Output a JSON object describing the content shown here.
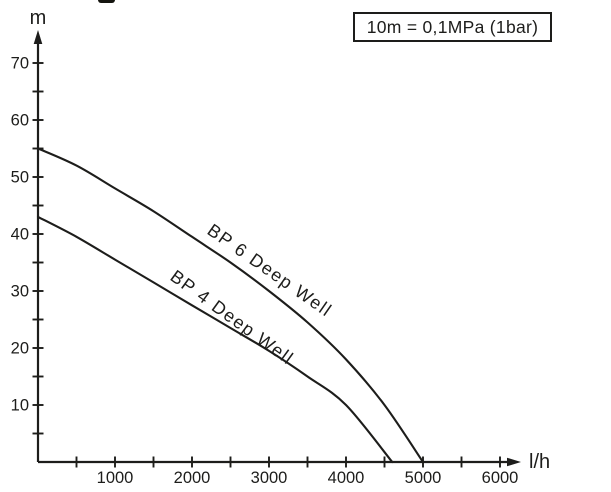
{
  "chart_data": {
    "type": "line",
    "title": "",
    "xlabel": "l/h",
    "ylabel": "m",
    "annotation": "10m = 0,1MPa (1bar)",
    "grid": false,
    "legend_position": "labels-along-curves",
    "x_axis": {
      "unit_label": "l/h",
      "range": [
        0,
        6250
      ],
      "major_ticks": [
        1000,
        2000,
        3000,
        4000,
        5000,
        6000
      ],
      "minor_ticks": [
        500,
        1500,
        2500,
        3500,
        4500,
        5500
      ]
    },
    "y_axis": {
      "unit_label": "m",
      "range": [
        0,
        73
      ],
      "major_ticks": [
        10,
        20,
        30,
        40,
        50,
        60,
        70
      ],
      "minor_ticks": [
        5,
        15,
        25,
        35,
        45,
        55,
        65
      ]
    },
    "series": [
      {
        "name": "BP 6 Deep Well",
        "points": [
          [
            0,
            55
          ],
          [
            500,
            52
          ],
          [
            1000,
            48
          ],
          [
            1500,
            44
          ],
          [
            2000,
            39.5
          ],
          [
            2500,
            35
          ],
          [
            3000,
            30
          ],
          [
            3500,
            24.5
          ],
          [
            4000,
            18
          ],
          [
            4500,
            10
          ],
          [
            5000,
            0
          ]
        ]
      },
      {
        "name": "BP 4 Deep Well",
        "points": [
          [
            0,
            43
          ],
          [
            500,
            39.5
          ],
          [
            1000,
            35.5
          ],
          [
            1500,
            31.5
          ],
          [
            2000,
            27.5
          ],
          [
            2500,
            23.5
          ],
          [
            3000,
            19.5
          ],
          [
            3500,
            15
          ],
          [
            4000,
            10
          ],
          [
            4600,
            0
          ]
        ]
      }
    ]
  },
  "colors": {
    "ink": "#1d1d1b",
    "background": "#ffffff"
  }
}
